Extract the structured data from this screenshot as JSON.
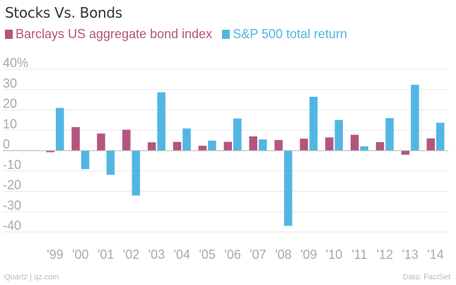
{
  "chart_data": {
    "type": "bar",
    "title": "Stocks Vs. Bonds",
    "categories": [
      "'99",
      "'00",
      "'01",
      "'02",
      "'03",
      "'04",
      "'05",
      "'06",
      "'07",
      "'08",
      "'09",
      "'10",
      "'11",
      "'12",
      "'13",
      "'14"
    ],
    "series": [
      {
        "name": "Barclays US aggregate bond index",
        "color": "#b4557f",
        "values": [
          -0.8,
          11.6,
          8.4,
          10.3,
          4.1,
          4.3,
          2.4,
          4.3,
          7.0,
          5.2,
          5.9,
          6.5,
          7.8,
          4.2,
          -2.0,
          6.0
        ]
      },
      {
        "name": "S&P 500 total return",
        "color": "#52b6e3",
        "values": [
          21.0,
          -9.1,
          -11.9,
          -22.1,
          28.7,
          10.9,
          4.9,
          15.8,
          5.5,
          -37.0,
          26.5,
          15.1,
          2.1,
          16.0,
          32.4,
          13.7
        ]
      }
    ],
    "yticks": [
      "40%",
      "30",
      "20",
      "10",
      "0",
      "-10",
      "-20",
      "-30",
      "-40"
    ],
    "ylim": [
      -40,
      40
    ],
    "grid": true,
    "legend_position": "top-left"
  },
  "footer": {
    "source_left": "Quartz | qz.com",
    "source_right": "Data: FactSet"
  }
}
